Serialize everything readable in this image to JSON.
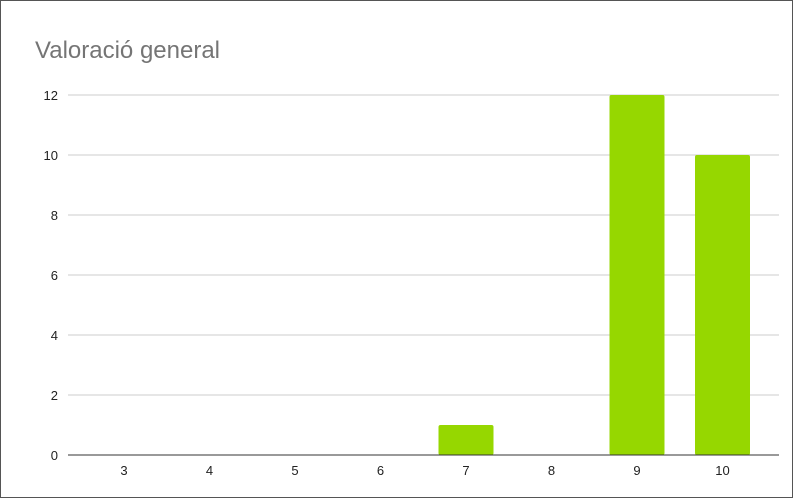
{
  "chart_data": {
    "type": "bar",
    "title": "Valoració general",
    "xlabel": "",
    "ylabel": "",
    "categories": [
      "3",
      "4",
      "5",
      "6",
      "7",
      "8",
      "9",
      "10"
    ],
    "values": [
      0,
      0,
      0,
      0,
      1,
      0,
      12,
      10
    ],
    "ylim": [
      0,
      12
    ],
    "yticks": [
      "0",
      "2",
      "4",
      "6",
      "8",
      "10",
      "12"
    ],
    "grid": true,
    "legend": "none",
    "bar_color": "#96D700",
    "grid_color": "#CCCCCC",
    "baseline_color": "#333333"
  }
}
